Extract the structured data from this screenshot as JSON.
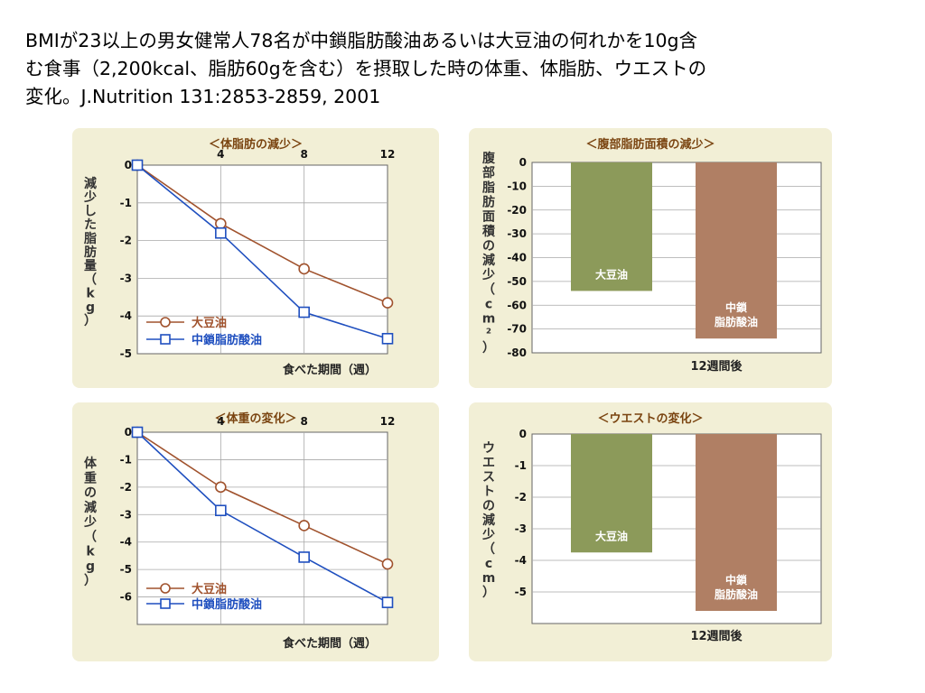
{
  "header": {
    "line1": "BMIが23以上の男女健常人78名が中鎖脂肪酸油あるいは大豆油の何れかを10g含",
    "line2": "む食事（2,200kcal、脂肪60gを含む）を摂取した時の体重、体脂肪、ウエストの",
    "line3": "変化。J.Nutrition 131:2853-2859, 2001"
  },
  "colors": {
    "soy": "#a0522d",
    "mct": "#1f4fbf",
    "soy_bar": "#8c9a5a",
    "mct_bar": "#b07f64",
    "panel_bg": "#f2efd6",
    "title": "#7a4410"
  },
  "chart_data": [
    {
      "type": "line",
      "title": "＜体脂肪の減少＞",
      "ylabel": "減少した脂肪量（kg）",
      "xlabel": "食べた期間（週）",
      "x": [
        0,
        4,
        8,
        12
      ],
      "x_ticks": [
        "4",
        "8",
        "12"
      ],
      "xlim": [
        0,
        12
      ],
      "ylim": [
        -5,
        0
      ],
      "y_ticks": [
        "0",
        "-1",
        "-2",
        "-3",
        "-4",
        "-5"
      ],
      "grid": true,
      "legend": "bottom-left",
      "series": [
        {
          "name": "大豆油",
          "marker": "circle",
          "values": [
            0,
            -1.55,
            -2.75,
            -3.65
          ]
        },
        {
          "name": "中鎖脂肪酸油",
          "marker": "square",
          "values": [
            0,
            -1.8,
            -3.9,
            -4.6
          ]
        }
      ]
    },
    {
      "type": "bar",
      "title": "＜腹部脂肪面積の減少＞",
      "ylabel": "腹部脂肪面積の減少（cm²）",
      "xlabel": "12週間後",
      "categories": [
        "大豆油",
        "中鎖脂肪酸油"
      ],
      "bar_labels": [
        [
          "大豆油"
        ],
        [
          "中鎖",
          "脂肪酸油"
        ]
      ],
      "values": [
        -54,
        -74
      ],
      "ylim": [
        -80,
        0
      ],
      "y_ticks": [
        "0",
        "-10",
        "-20",
        "-30",
        "-40",
        "-50",
        "-60",
        "-70",
        "-80"
      ],
      "grid": true
    },
    {
      "type": "line",
      "title": "＜体重の変化＞",
      "ylabel": "体重の減少（kg）",
      "xlabel": "食べた期間（週）",
      "x": [
        0,
        4,
        8,
        12
      ],
      "x_ticks": [
        "4",
        "8",
        "12"
      ],
      "xlim": [
        0,
        12
      ],
      "ylim": [
        -7,
        0
      ],
      "y_ticks": [
        "0",
        "-1",
        "-2",
        "-3",
        "-4",
        "-5",
        "-6"
      ],
      "grid": true,
      "legend": "bottom-left",
      "series": [
        {
          "name": "大豆油",
          "marker": "circle",
          "values": [
            0,
            -2.0,
            -3.4,
            -4.8
          ]
        },
        {
          "name": "中鎖脂肪酸油",
          "marker": "square",
          "values": [
            0,
            -2.85,
            -4.55,
            -6.2
          ]
        }
      ]
    },
    {
      "type": "bar",
      "title": "＜ウエストの変化＞",
      "ylabel": "ウエストの減少（cm）",
      "xlabel": "12週間後",
      "categories": [
        "大豆油",
        "中鎖脂肪酸油"
      ],
      "bar_labels": [
        [
          "大豆油"
        ],
        [
          "中鎖",
          "脂肪酸油"
        ]
      ],
      "values": [
        -3.75,
        -5.6
      ],
      "ylim": [
        -6,
        0
      ],
      "y_ticks": [
        "0",
        "-1",
        "-2",
        "-3",
        "-4",
        "-5"
      ],
      "grid": true
    }
  ]
}
